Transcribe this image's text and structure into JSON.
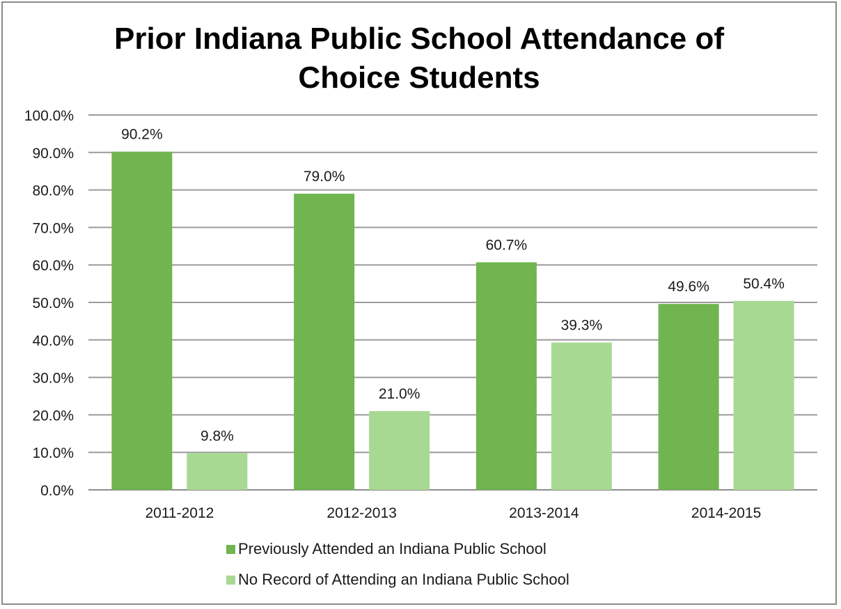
{
  "chart_data": {
    "type": "bar",
    "title": "Prior Indiana Public School Attendance of Choice Students",
    "categories": [
      "2011-2012",
      "2012-2013",
      "2013-2014",
      "2014-2015"
    ],
    "series": [
      {
        "name": "Previously Attended an Indiana Public School",
        "values": [
          90.2,
          79.0,
          60.7,
          49.6
        ],
        "labels": [
          "90.2%",
          "79.0%",
          "60.7%",
          "49.6%"
        ],
        "color": "#70b54f"
      },
      {
        "name": "No Record of Attending an Indiana Public School",
        "values": [
          9.8,
          21.0,
          39.3,
          50.4
        ],
        "labels": [
          "9.8%",
          "21.0%",
          "39.3%",
          "50.4%"
        ],
        "color": "#a8d993"
      }
    ],
    "ylim": [
      0,
      100
    ],
    "yticks": [
      0,
      10,
      20,
      30,
      40,
      50,
      60,
      70,
      80,
      90,
      100
    ],
    "ytick_labels": [
      "0.0%",
      "10.0%",
      "20.0%",
      "30.0%",
      "40.0%",
      "50.0%",
      "60.0%",
      "70.0%",
      "80.0%",
      "90.0%",
      "100.0%"
    ],
    "grid": true,
    "legend": "bottom"
  }
}
